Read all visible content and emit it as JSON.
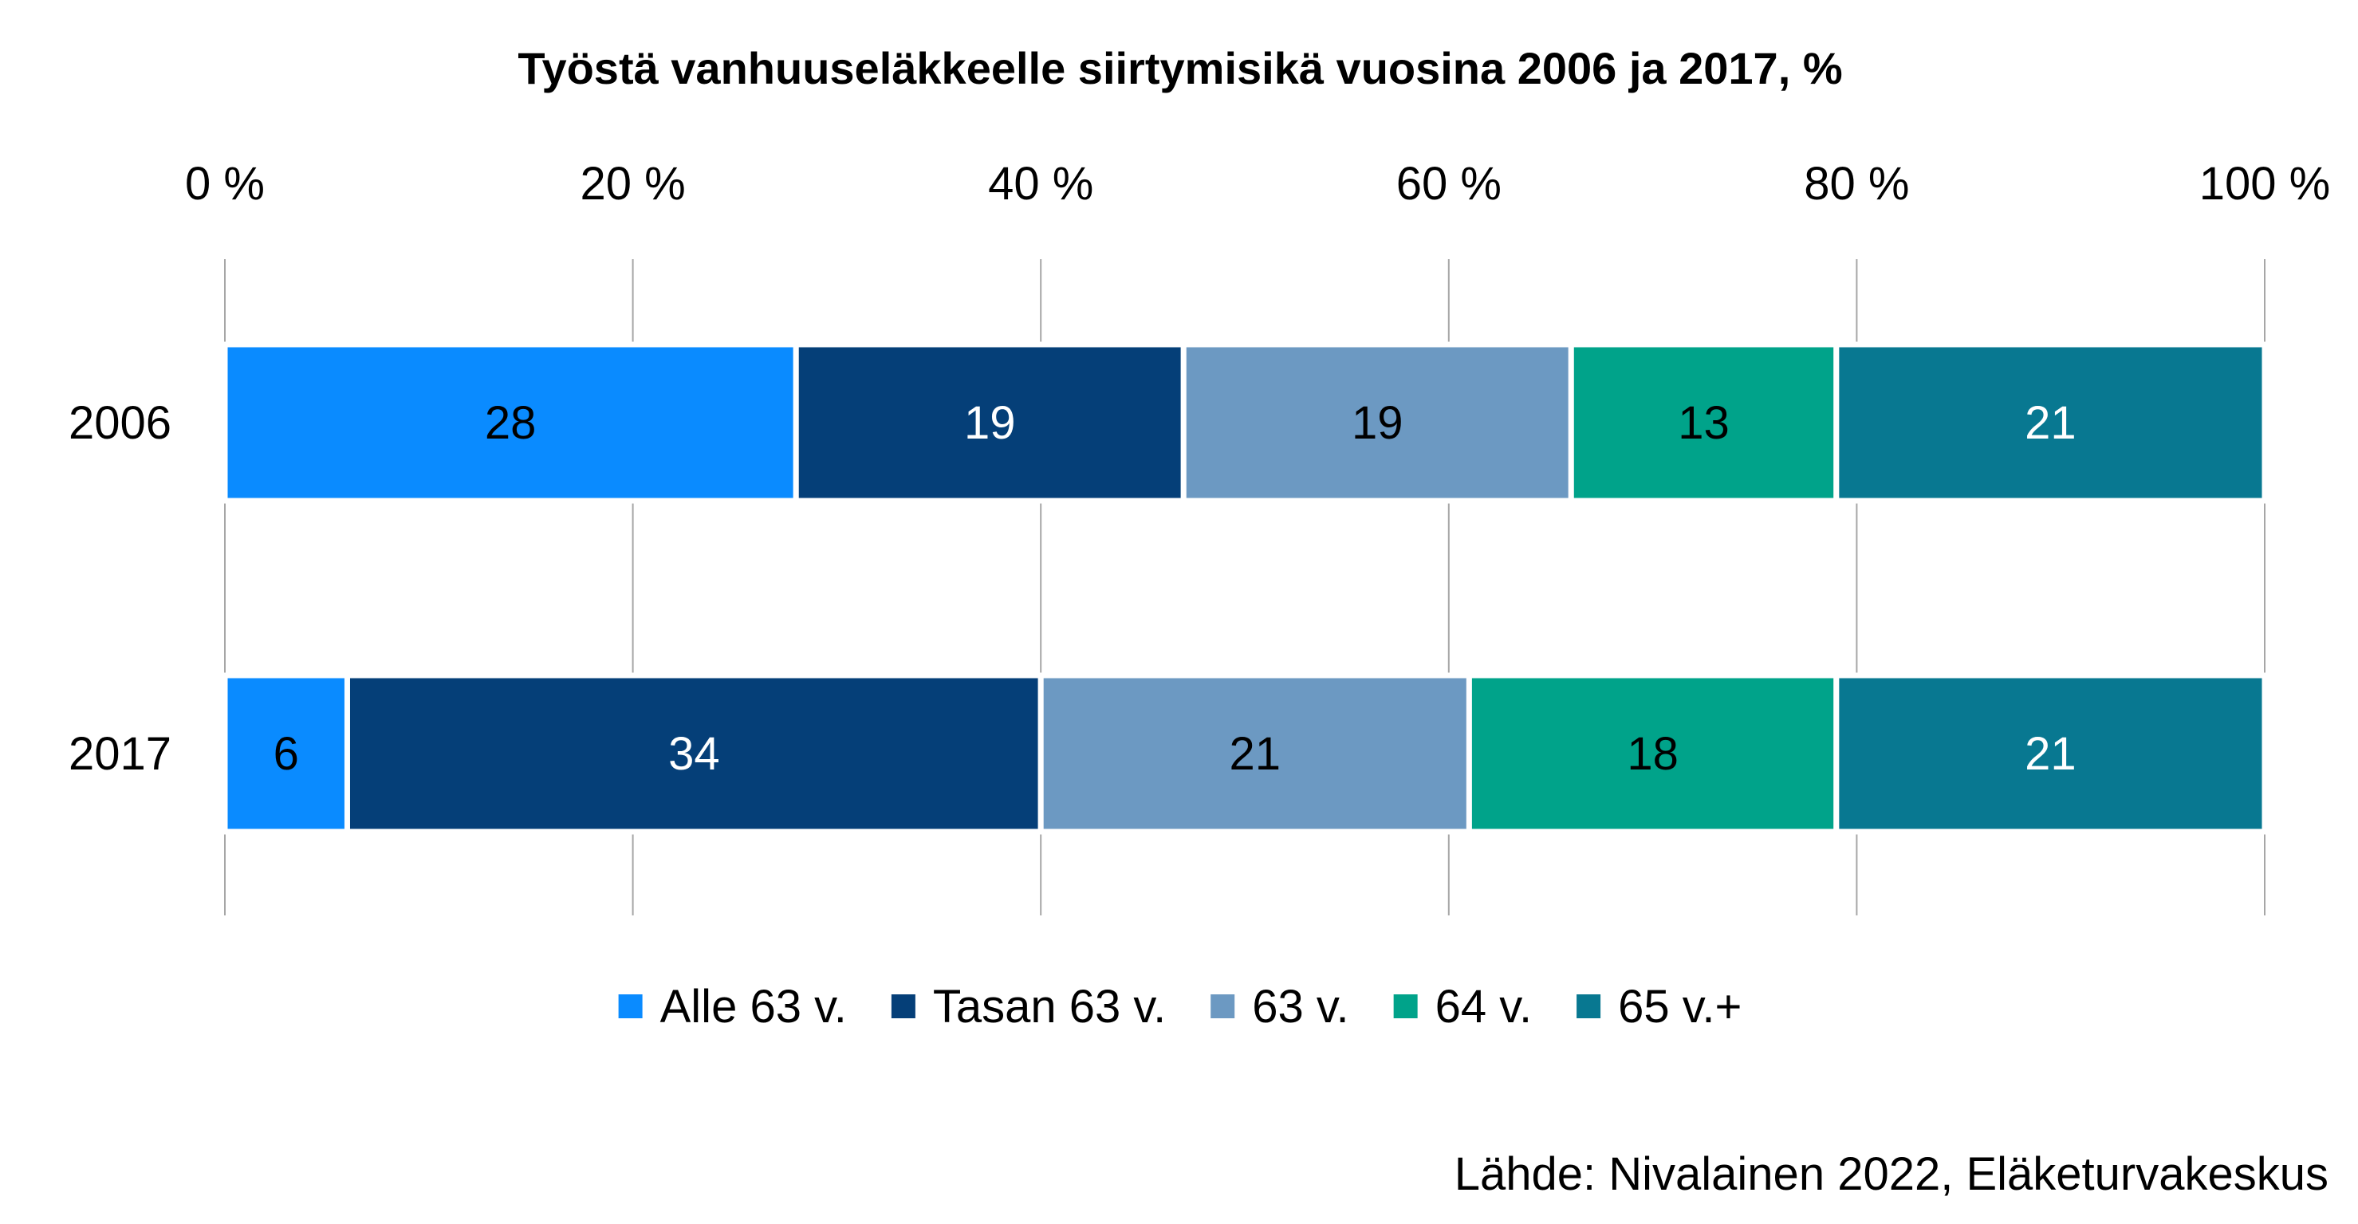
{
  "chart_data": {
    "type": "bar",
    "orientation": "horizontal",
    "stacked": true,
    "title": "Työstä vanhuuseläkkeelle siirtymisikä vuosina 2006 ja 2017, %",
    "source": "Lähde: Nivalainen 2022, Eläketurvakeskus",
    "categories": [
      "2006",
      "2017"
    ],
    "xlim": [
      0,
      100
    ],
    "x_ticks": [
      0,
      20,
      40,
      60,
      80,
      100
    ],
    "x_tick_labels": [
      "0 %",
      "20 %",
      "40 %",
      "60 %",
      "80 %",
      "100 %"
    ],
    "xaxis_position": "top",
    "grid": true,
    "legend_position": "bottom",
    "series": [
      {
        "name": "Alle 63 v.",
        "values": [
          28,
          6
        ],
        "labels": [
          "28",
          "6"
        ],
        "color": "#0A8BFF",
        "label_color": "#000000"
      },
      {
        "name": "Tasan 63 v.",
        "values": [
          19,
          34
        ],
        "labels": [
          "19",
          "34"
        ],
        "color": "#053F78",
        "label_color": "#ffffff"
      },
      {
        "name": "63 v.",
        "values": [
          19,
          21
        ],
        "labels": [
          "19",
          "21"
        ],
        "color": "#6C99C2",
        "label_color": "#000000"
      },
      {
        "name": "64 v.",
        "values": [
          13,
          18
        ],
        "labels": [
          "13",
          "18"
        ],
        "color": "#00A38A",
        "label_color": "#000000"
      },
      {
        "name": "65 v.+",
        "values": [
          21,
          21
        ],
        "labels": [
          "21",
          "21"
        ],
        "color": "#087891",
        "label_color": "#ffffff"
      }
    ]
  }
}
